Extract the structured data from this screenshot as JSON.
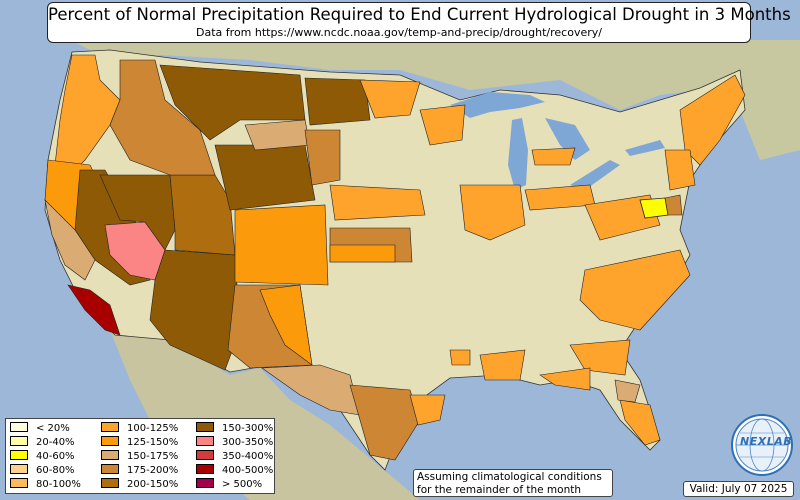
{
  "title": "Percent of Normal Precipitation Required to End Current Hydrological Drought in 3 Months",
  "subtitle": "Data from https://www.ncdc.noaa.gov/temp-and-precip/drought/recovery/",
  "legend": [
    {
      "label": "< 20%",
      "color": "#fffee0"
    },
    {
      "label": "20-40%",
      "color": "#ffffa8"
    },
    {
      "label": "40-60%",
      "color": "#fefe00"
    },
    {
      "label": "60-80%",
      "color": "#fcd28c"
    },
    {
      "label": "80-100%",
      "color": "#fbba5d"
    },
    {
      "label": "100-125%",
      "color": "#fea32b"
    },
    {
      "label": "125-150%",
      "color": "#fb9b0c"
    },
    {
      "label": "150-175%",
      "color": "#dbab74"
    },
    {
      "label": "175-200%",
      "color": "#cc8634"
    },
    {
      "label": "200-150%",
      "color": "#ae6d0f"
    },
    {
      "label": "150-300%",
      "color": "#8e5a05"
    },
    {
      "label": "300-350%",
      "color": "#fb8484"
    },
    {
      "label": "350-400%",
      "color": "#d23c3c"
    },
    {
      "label": "400-500%",
      "color": "#a80000"
    },
    {
      "label": "> 500%",
      "color": "#a2004e"
    }
  ],
  "note_line1": "Assuming climatological conditions",
  "note_line2": "for the remainder of the month",
  "valid": "Valid: July 07 2025",
  "logo": {
    "text": "NEXLAB",
    "icon": "globe-logo-icon"
  },
  "colors": {
    "ocean": "#9db7d9",
    "land_us": "#e6e0b8",
    "land_foreign": "#c9c9a0",
    "lakes": "#7fa7d6"
  }
}
